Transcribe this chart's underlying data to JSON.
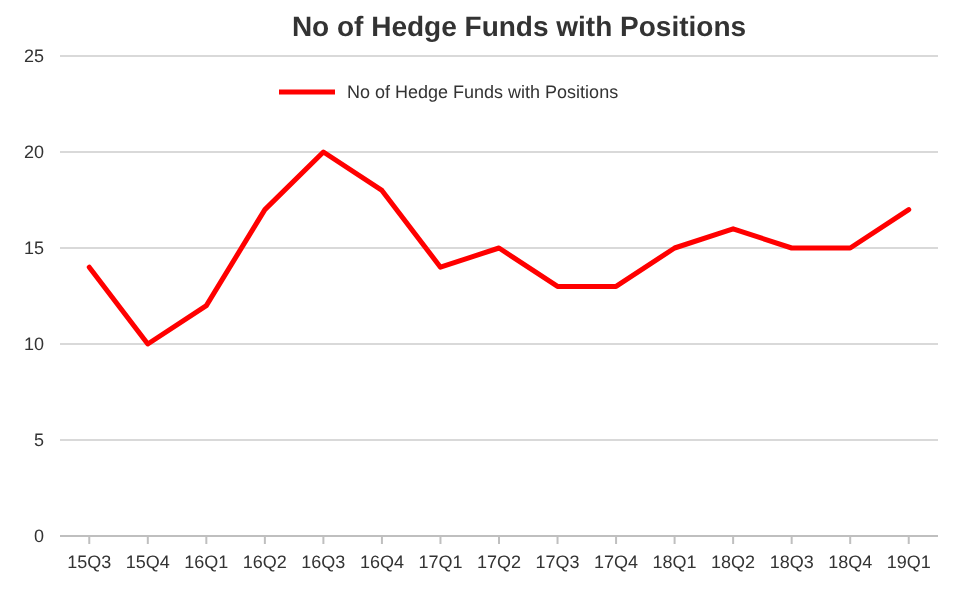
{
  "chart_data": {
    "type": "line",
    "title": "No of Hedge Funds with Positions",
    "categories": [
      "15Q3",
      "15Q4",
      "16Q1",
      "16Q2",
      "16Q3",
      "16Q4",
      "17Q1",
      "17Q2",
      "17Q3",
      "17Q4",
      "18Q1",
      "18Q2",
      "18Q3",
      "18Q4",
      "19Q1"
    ],
    "series": [
      {
        "name": "No of Hedge Funds with Positions",
        "color": "#ff0000",
        "values": [
          14,
          10,
          12,
          17,
          20,
          18,
          14,
          15,
          13,
          13,
          15,
          16,
          15,
          15,
          17
        ]
      }
    ],
    "ylim": [
      0,
      25
    ],
    "yticks": [
      0,
      5,
      10,
      15,
      20,
      25
    ],
    "grid": "y",
    "legend": "top",
    "marker": "none",
    "line_style": "solid"
  }
}
